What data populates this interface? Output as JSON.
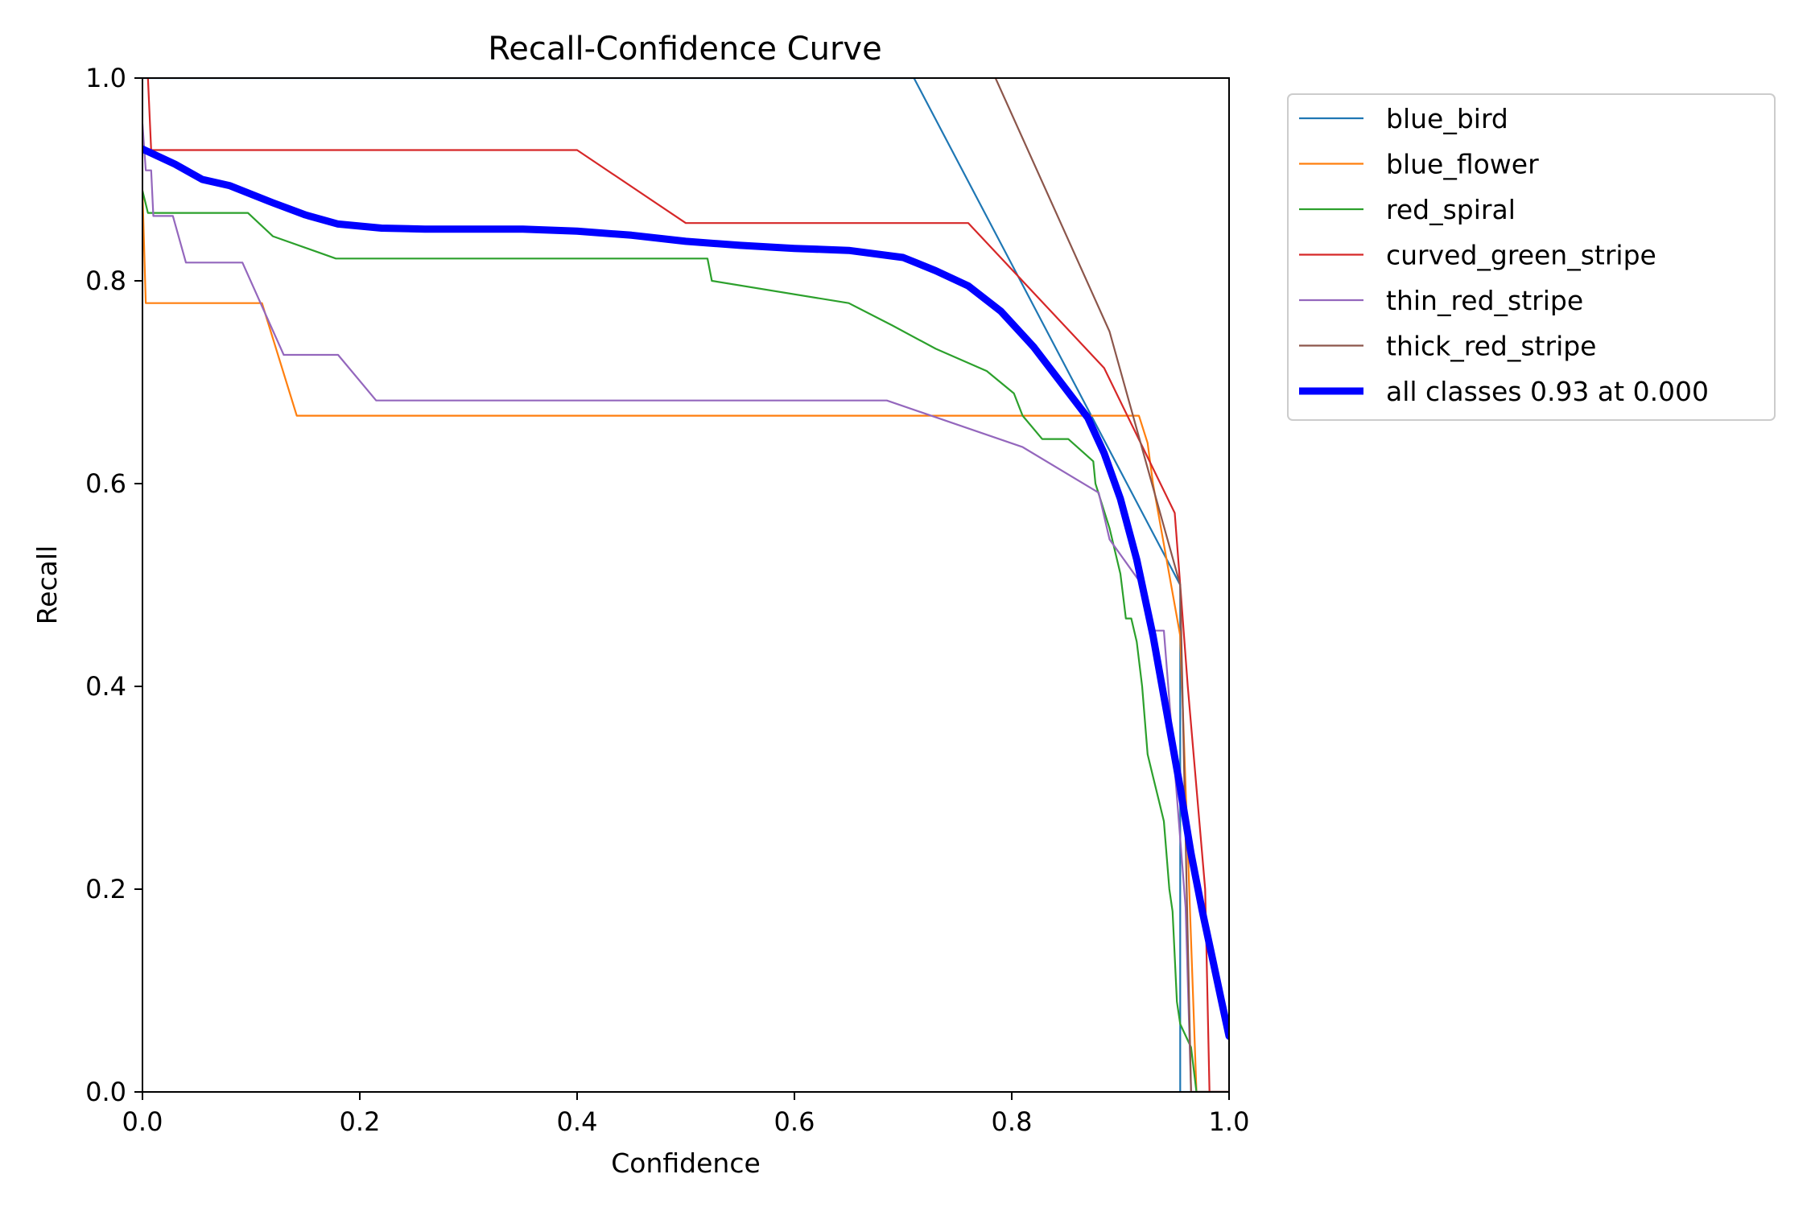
{
  "chart_data": {
    "type": "line",
    "title": "Recall-Confidence Curve",
    "xlabel": "Confidence",
    "ylabel": "Recall",
    "xlim": [
      0,
      1
    ],
    "ylim": [
      0,
      1
    ],
    "xticks": [
      "0.0",
      "0.2",
      "0.4",
      "0.6",
      "0.8",
      "1.0"
    ],
    "yticks": [
      "0.0",
      "0.2",
      "0.4",
      "0.6",
      "0.8",
      "1.0"
    ],
    "grid": false,
    "legend_position": "outside-top-right",
    "series": [
      {
        "name": "blue_bird",
        "color": "#1f77b4",
        "points": [
          [
            0.0,
            1.0
          ],
          [
            0.71,
            1.0
          ],
          [
            0.955,
            0.5
          ],
          [
            0.955,
            0.0
          ],
          [
            1.0,
            0.0
          ]
        ]
      },
      {
        "name": "blue_flower",
        "color": "#ff7f0e",
        "points": [
          [
            0.0,
            0.889
          ],
          [
            0.003,
            0.778
          ],
          [
            0.11,
            0.778
          ],
          [
            0.142,
            0.667
          ],
          [
            0.917,
            0.667
          ],
          [
            0.925,
            0.64
          ],
          [
            0.93,
            0.6
          ],
          [
            0.955,
            0.45
          ],
          [
            0.97,
            0.0
          ],
          [
            1.0,
            0.0
          ]
        ]
      },
      {
        "name": "red_spiral",
        "color": "#2ca02c",
        "points": [
          [
            0.0,
            0.889
          ],
          [
            0.005,
            0.867
          ],
          [
            0.097,
            0.867
          ],
          [
            0.12,
            0.844
          ],
          [
            0.178,
            0.822
          ],
          [
            0.52,
            0.822
          ],
          [
            0.524,
            0.8
          ],
          [
            0.65,
            0.778
          ],
          [
            0.69,
            0.756
          ],
          [
            0.73,
            0.733
          ],
          [
            0.777,
            0.711
          ],
          [
            0.802,
            0.689
          ],
          [
            0.81,
            0.667
          ],
          [
            0.828,
            0.644
          ],
          [
            0.852,
            0.644
          ],
          [
            0.875,
            0.622
          ],
          [
            0.877,
            0.6
          ],
          [
            0.89,
            0.556
          ],
          [
            0.9,
            0.511
          ],
          [
            0.905,
            0.467
          ],
          [
            0.91,
            0.467
          ],
          [
            0.915,
            0.444
          ],
          [
            0.92,
            0.4
          ],
          [
            0.925,
            0.333
          ],
          [
            0.93,
            0.311
          ],
          [
            0.935,
            0.289
          ],
          [
            0.94,
            0.267
          ],
          [
            0.945,
            0.2
          ],
          [
            0.948,
            0.178
          ],
          [
            0.952,
            0.089
          ],
          [
            0.955,
            0.067
          ],
          [
            0.965,
            0.044
          ],
          [
            0.97,
            0.0
          ],
          [
            1.0,
            0.0
          ]
        ]
      },
      {
        "name": "curved_green_stripe",
        "color": "#d62728",
        "points": [
          [
            0.005,
            1.0
          ],
          [
            0.008,
            0.929
          ],
          [
            0.4,
            0.929
          ],
          [
            0.5,
            0.857
          ],
          [
            0.76,
            0.857
          ],
          [
            0.885,
            0.714
          ],
          [
            0.95,
            0.571
          ],
          [
            0.955,
            0.5
          ],
          [
            0.962,
            0.4
          ],
          [
            0.97,
            0.3
          ],
          [
            0.978,
            0.2
          ],
          [
            0.982,
            0.0
          ],
          [
            1.0,
            0.0
          ]
        ]
      },
      {
        "name": "thin_red_stripe",
        "color": "#9467bd",
        "points": [
          [
            0.0,
            0.955
          ],
          [
            0.003,
            0.909
          ],
          [
            0.008,
            0.909
          ],
          [
            0.01,
            0.864
          ],
          [
            0.028,
            0.864
          ],
          [
            0.04,
            0.818
          ],
          [
            0.092,
            0.818
          ],
          [
            0.13,
            0.727
          ],
          [
            0.18,
            0.727
          ],
          [
            0.215,
            0.682
          ],
          [
            0.685,
            0.682
          ],
          [
            0.81,
            0.636
          ],
          [
            0.88,
            0.591
          ],
          [
            0.89,
            0.545
          ],
          [
            0.92,
            0.5
          ],
          [
            0.93,
            0.455
          ],
          [
            0.94,
            0.455
          ],
          [
            0.96,
            0.182
          ],
          [
            0.965,
            0.0
          ],
          [
            1.0,
            0.0
          ]
        ]
      },
      {
        "name": "thick_red_stripe",
        "color": "#8c564b",
        "points": [
          [
            0.785,
            1.0
          ],
          [
            0.89,
            0.75
          ],
          [
            0.955,
            0.5
          ],
          [
            0.96,
            0.25
          ],
          [
            0.965,
            0.0
          ],
          [
            1.0,
            0.0
          ]
        ]
      },
      {
        "name": "all classes 0.93 at 0.000",
        "color": "#0000ff",
        "bold": true,
        "points": [
          [
            0.0,
            0.93
          ],
          [
            0.03,
            0.915
          ],
          [
            0.055,
            0.9
          ],
          [
            0.08,
            0.894
          ],
          [
            0.12,
            0.877
          ],
          [
            0.15,
            0.865
          ],
          [
            0.18,
            0.856
          ],
          [
            0.22,
            0.852
          ],
          [
            0.26,
            0.851
          ],
          [
            0.3,
            0.851
          ],
          [
            0.35,
            0.851
          ],
          [
            0.4,
            0.849
          ],
          [
            0.45,
            0.845
          ],
          [
            0.5,
            0.839
          ],
          [
            0.55,
            0.835
          ],
          [
            0.6,
            0.832
          ],
          [
            0.65,
            0.83
          ],
          [
            0.7,
            0.823
          ],
          [
            0.73,
            0.81
          ],
          [
            0.76,
            0.795
          ],
          [
            0.79,
            0.77
          ],
          [
            0.82,
            0.735
          ],
          [
            0.845,
            0.7
          ],
          [
            0.87,
            0.665
          ],
          [
            0.885,
            0.63
          ],
          [
            0.9,
            0.585
          ],
          [
            0.915,
            0.525
          ],
          [
            0.93,
            0.45
          ],
          [
            0.945,
            0.36
          ],
          [
            0.955,
            0.3
          ],
          [
            0.965,
            0.235
          ],
          [
            0.975,
            0.18
          ],
          [
            0.985,
            0.13
          ],
          [
            0.993,
            0.09
          ],
          [
            1.0,
            0.055
          ]
        ]
      }
    ]
  }
}
